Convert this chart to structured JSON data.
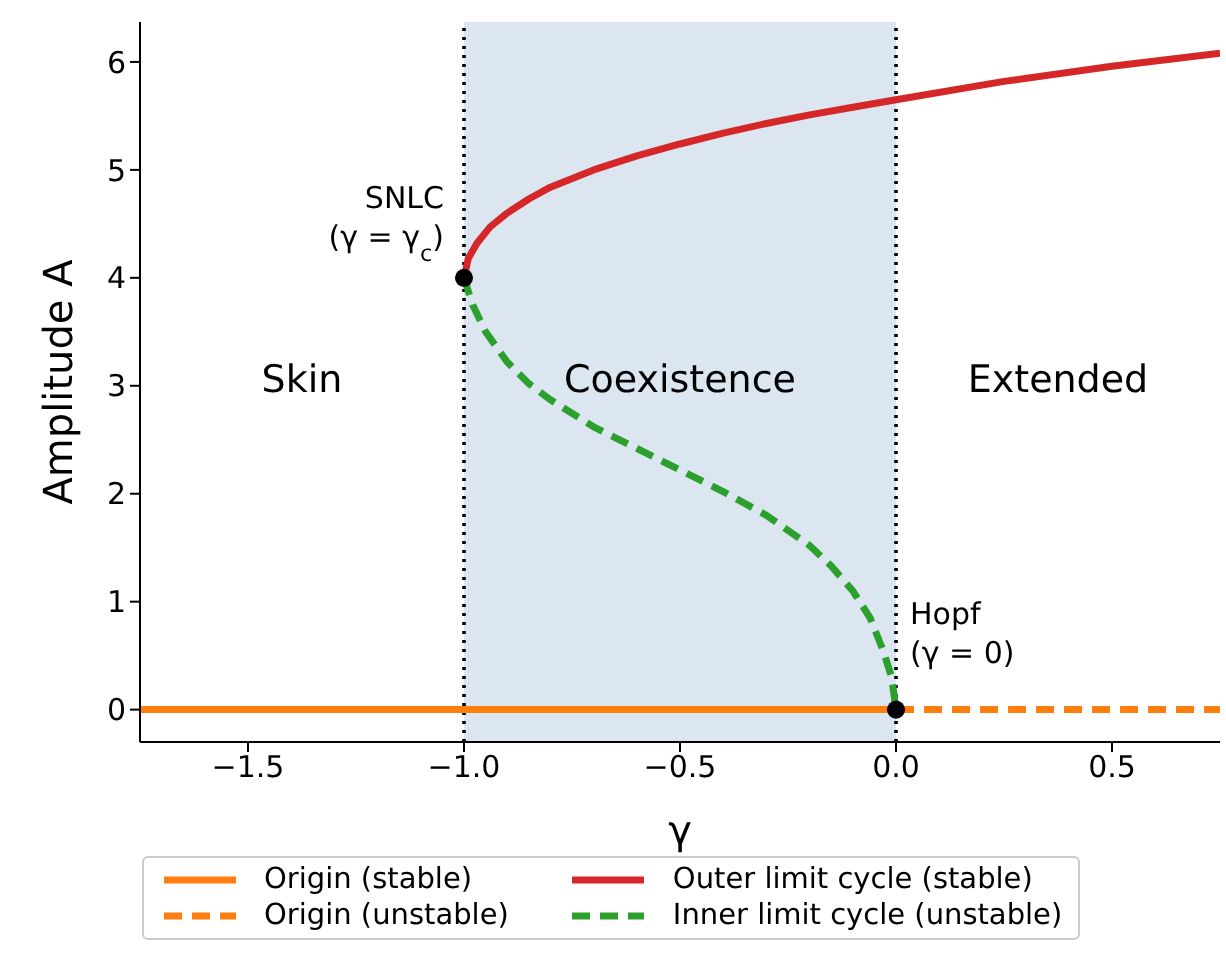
{
  "chart_data": {
    "type": "line",
    "xlabel": "γ",
    "ylabel": "Amplitude A",
    "xlim": [
      -1.75,
      0.75
    ],
    "ylim": [
      -0.3,
      6.37
    ],
    "xticks": [
      {
        "value": -1.5,
        "label": "−1.5"
      },
      {
        "value": -1.0,
        "label": "−1.0"
      },
      {
        "value": -0.5,
        "label": "−0.5"
      },
      {
        "value": 0.0,
        "label": "0.0"
      },
      {
        "value": 0.5,
        "label": "0.5"
      }
    ],
    "yticks": [
      0,
      1,
      2,
      3,
      4,
      5,
      6
    ],
    "grid": false,
    "legend": "bottom",
    "series": [
      {
        "name": "Origin (stable)",
        "color": "#ff7f0e",
        "line_style": "solid",
        "x": [
          -1.75,
          0
        ],
        "values": [
          0,
          0
        ]
      },
      {
        "name": "Origin (unstable)",
        "color": "#ff7f0e",
        "line_style": "dashed",
        "x": [
          0,
          0.75
        ],
        "values": [
          0,
          0
        ]
      },
      {
        "name": "Outer limit cycle (stable)",
        "color": "#d62728",
        "line_style": "solid",
        "x": [
          -1,
          -0.99,
          -0.97,
          -0.94,
          -0.9,
          -0.85,
          -0.8,
          -0.7,
          -0.6,
          -0.5,
          -0.4,
          -0.3,
          -0.2,
          -0.1,
          0,
          0.25,
          0.5,
          0.75
        ],
        "values": [
          4.0,
          4.18,
          4.32,
          4.47,
          4.6,
          4.73,
          4.84,
          5.0,
          5.13,
          5.24,
          5.34,
          5.43,
          5.51,
          5.58,
          5.65,
          5.82,
          5.96,
          6.08
        ]
      },
      {
        "name": "Inner limit cycle (unstable)",
        "color": "#2ca02c",
        "line_style": "dashed",
        "x": [
          -1,
          -0.98,
          -0.95,
          -0.9,
          -0.85,
          -0.8,
          -0.7,
          -0.6,
          -0.5,
          -0.4,
          -0.3,
          -0.2,
          -0.15,
          -0.1,
          -0.06,
          -0.03,
          -0.01,
          0
        ],
        "values": [
          4.0,
          3.75,
          3.5,
          3.22,
          3.02,
          2.87,
          2.62,
          2.42,
          2.22,
          2.02,
          1.8,
          1.52,
          1.33,
          1.1,
          0.85,
          0.55,
          0.3,
          0
        ]
      },
      {
        "type": "scatter",
        "color": "#000000",
        "marker": "circle",
        "x": [
          -1,
          0
        ],
        "values": [
          4,
          0
        ]
      }
    ],
    "ref_lines": [
      {
        "axis": "x",
        "value": -1,
        "color": "#000000",
        "line_style": "dotted"
      },
      {
        "axis": "x",
        "value": 0,
        "color": "#000000",
        "line_style": "dotted"
      }
    ],
    "bands": [
      {
        "axis": "x",
        "from": -1,
        "to": 0,
        "color": "#dbe6f1"
      }
    ],
    "annotations": [
      {
        "text": "SNLC\n(γ = γ$_{c}$)",
        "x": -1,
        "y": 4
      },
      {
        "text": "Hopf\n(γ = 0)",
        "x": 0,
        "y": 0
      },
      "Skin",
      "Coexistence",
      "Extended"
    ]
  }
}
